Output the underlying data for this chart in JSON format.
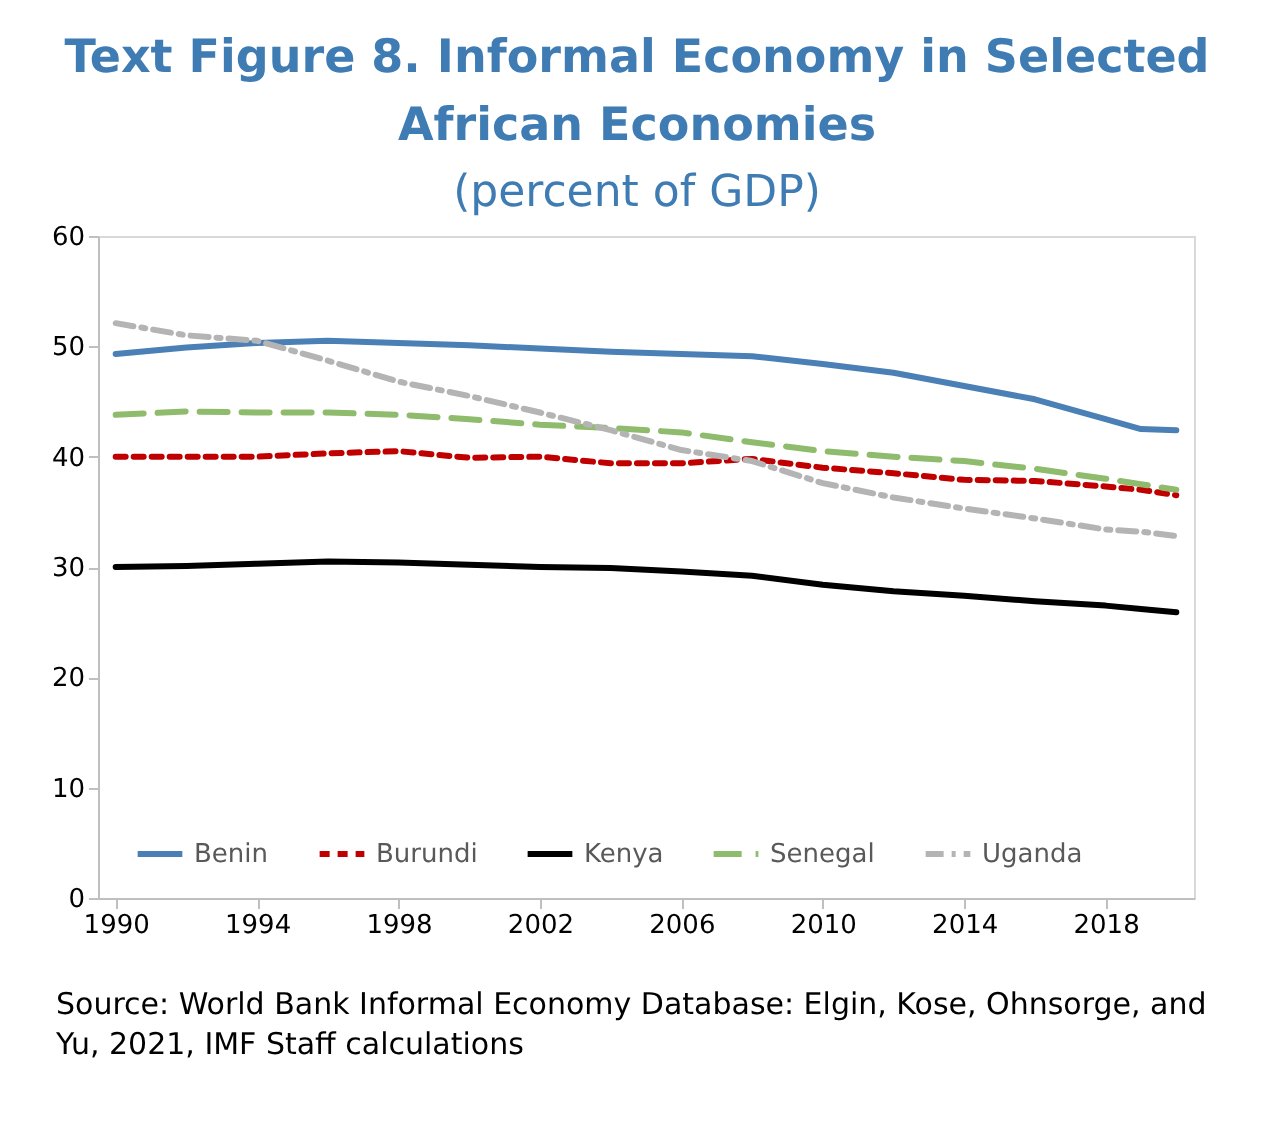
{
  "chart_data": {
    "type": "line",
    "title": "Text Figure 8. Informal Economy in Selected African Economies",
    "subtitle": "(percent of GDP)",
    "x": [
      1990,
      1992,
      1994,
      1996,
      1998,
      2000,
      2002,
      2004,
      2006,
      2008,
      2010,
      2012,
      2014,
      2016,
      2018,
      2019,
      2020
    ],
    "series": [
      {
        "name": "Benin",
        "color": "#4a80b5",
        "line_style": "solid",
        "values": [
          49.3,
          49.9,
          50.3,
          50.5,
          50.3,
          50.1,
          49.8,
          49.5,
          49.3,
          49.1,
          48.4,
          47.6,
          46.4,
          45.2,
          43.4,
          42.5,
          42.4
        ]
      },
      {
        "name": "Burundi",
        "color": "#c00000",
        "line_style": "dotted",
        "values": [
          40.0,
          40.0,
          40.0,
          40.3,
          40.5,
          39.9,
          40.0,
          39.4,
          39.4,
          39.8,
          39.0,
          38.5,
          37.9,
          37.8,
          37.3,
          37.0,
          36.5
        ]
      },
      {
        "name": "Kenya",
        "color": "#000000",
        "line_style": "solid",
        "values": [
          30.0,
          30.1,
          30.3,
          30.5,
          30.4,
          30.2,
          30.0,
          29.9,
          29.6,
          29.2,
          28.4,
          27.8,
          27.4,
          26.9,
          26.5,
          26.2,
          25.9
        ]
      },
      {
        "name": "Senegal",
        "color": "#8fbb6c",
        "line_style": "dashed",
        "values": [
          43.8,
          44.1,
          44.0,
          44.0,
          43.8,
          43.4,
          42.9,
          42.6,
          42.2,
          41.3,
          40.5,
          40.0,
          39.6,
          38.9,
          38.0,
          37.5,
          37.0
        ]
      },
      {
        "name": "Uganda",
        "color": "#b4b4b4",
        "line_style": "dashdot",
        "values": [
          52.1,
          51.0,
          50.5,
          48.7,
          46.8,
          45.5,
          44.0,
          42.4,
          40.6,
          39.6,
          37.6,
          36.3,
          35.3,
          34.4,
          33.4,
          33.2,
          32.8
        ]
      }
    ],
    "xlim": [
      1989.5,
      2020.5
    ],
    "xticks": [
      1990,
      1994,
      1998,
      2002,
      2006,
      2010,
      2014,
      2018
    ],
    "ylim": [
      0,
      60
    ],
    "yticks": [
      0,
      10,
      20,
      30,
      40,
      50,
      60
    ],
    "legend": "bottom",
    "grid": false,
    "annotations": [
      "Source:  World Bank Informal Economy Database: Elgin, Kose, Ohnsorge, and Yu, 2021, IMF Staff calculations"
    ]
  }
}
